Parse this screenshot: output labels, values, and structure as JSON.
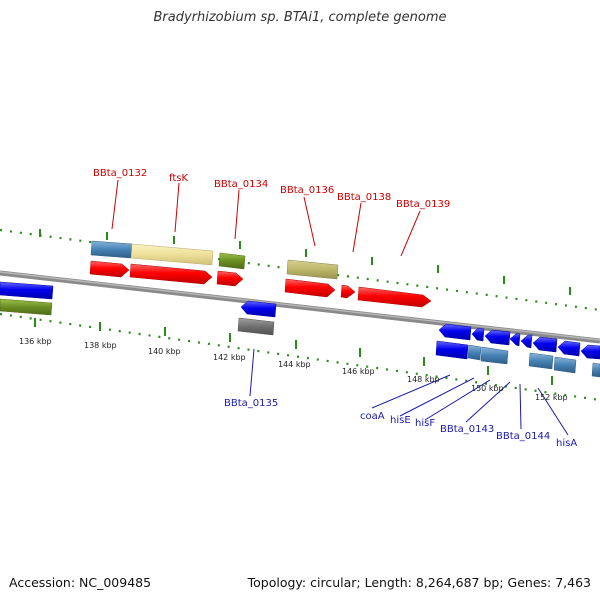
{
  "title": "Bradyrhizobium sp. BTAi1, complete genome",
  "footer": {
    "accession": "Accession: NC_009485",
    "topology": "Topology: circular; Length: 8,264,687 bp; Genes: 7,463"
  },
  "colors": {
    "background": "#ffffff",
    "backbone": "#8a8a8a",
    "tick": "#2a8a1a",
    "forward_label": "#cc0000",
    "reverse_label": "#1a1aaa"
  },
  "axis_ticks": [
    "136 kbp",
    "138 kbp",
    "140 kbp",
    "142 kbp",
    "144 kbp",
    "146 kbp",
    "148 kbp",
    "150 kbp",
    "152 kbp"
  ],
  "forward_labels": [
    "BBta_0132",
    "ftsK",
    "BBta_0134",
    "BBta_0136",
    "BBta_0138",
    "BBta_0139"
  ],
  "reverse_labels": [
    "BBta_0135",
    "coaA",
    "hisE",
    "hisF",
    "BBta_0143",
    "BBta_0144",
    "hisA"
  ]
}
